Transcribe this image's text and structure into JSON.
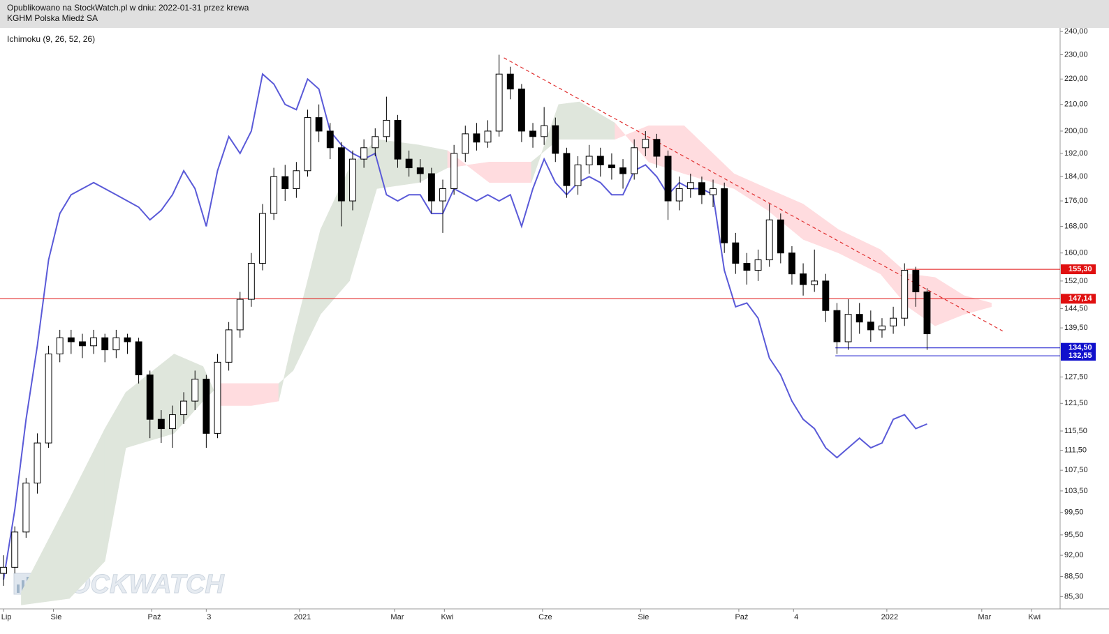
{
  "chart_data": {
    "type": "candlestick",
    "subtitle": "Opublikowano na StockWatch.pl w dniu: 2022-01-31 przez krewa",
    "title": "KGHM Polska Miedź SA",
    "indicator": "Ichimoku (9, 26, 52, 26)",
    "watermark": "STOCKWATCH",
    "log_scale": true,
    "xlim": [
      -2.2,
      656.7
    ],
    "ylim": [
      83.4,
      242.2
    ],
    "xticks": [
      {
        "value": 0,
        "label": "Lip"
      },
      {
        "value": 31,
        "label": "Sie"
      },
      {
        "value": 92,
        "label": "Paź"
      },
      {
        "value": 126,
        "label": "3"
      },
      {
        "value": 184,
        "label": "2021"
      },
      {
        "value": 243,
        "label": "Mar"
      },
      {
        "value": 274,
        "label": "Kwi"
      },
      {
        "value": 335,
        "label": "Cze"
      },
      {
        "value": 396,
        "label": "Sie"
      },
      {
        "value": 457,
        "label": "Paź"
      },
      {
        "value": 491,
        "label": "4"
      },
      {
        "value": 549,
        "label": "2022"
      },
      {
        "value": 608,
        "label": "Mar"
      },
      {
        "value": 639,
        "label": "Kwi"
      }
    ],
    "yticks": [
      {
        "value": 240,
        "label": "240,00"
      },
      {
        "value": 230,
        "label": "230,00"
      },
      {
        "value": 220,
        "label": "220,00"
      },
      {
        "value": 210,
        "label": "210,00"
      },
      {
        "value": 200,
        "label": "200,00"
      },
      {
        "value": 192,
        "label": "192,00"
      },
      {
        "value": 184,
        "label": "184,00"
      },
      {
        "value": 176,
        "label": "176,00"
      },
      {
        "value": 168,
        "label": "168,00"
      },
      {
        "value": 160,
        "label": "160,00"
      },
      {
        "value": 152,
        "label": "152,00"
      },
      {
        "value": 144.5,
        "label": "144,50"
      },
      {
        "value": 139.5,
        "label": "139,50"
      },
      {
        "value": 127.5,
        "label": "127,50"
      },
      {
        "value": 121.5,
        "label": "121,50"
      },
      {
        "value": 115.5,
        "label": "115,50"
      },
      {
        "value": 111.5,
        "label": "111,50"
      },
      {
        "value": 107.5,
        "label": "107,50"
      },
      {
        "value": 103.5,
        "label": "103,50"
      },
      {
        "value": 99.5,
        "label": "99,50"
      },
      {
        "value": 95.5,
        "label": "95,50"
      },
      {
        "value": 92,
        "label": "92,00"
      },
      {
        "value": 88.5,
        "label": "88,50"
      },
      {
        "value": 85.3,
        "label": "85,30"
      }
    ],
    "candle_up_color": "#ffffff",
    "candle_down_color": "#000000",
    "x": [
      0,
      7,
      14,
      21,
      28,
      35,
      42,
      49,
      56,
      63,
      70,
      77,
      84,
      91,
      98,
      105,
      112,
      119,
      126,
      133,
      140,
      147,
      154,
      161,
      168,
      175,
      182,
      189,
      196,
      203,
      210,
      217,
      224,
      231,
      238,
      245,
      252,
      259,
      266,
      273,
      280,
      287,
      294,
      301,
      308,
      315,
      322,
      329,
      336,
      343,
      350,
      357,
      364,
      371,
      378,
      385,
      392,
      399,
      406,
      413,
      420,
      427,
      434,
      441,
      448,
      455,
      462,
      469,
      476,
      483,
      490,
      497,
      504,
      511,
      518,
      525,
      532,
      539,
      546,
      553,
      560,
      567,
      574
    ],
    "open": [
      89,
      90,
      96,
      105,
      113,
      133,
      137,
      136,
      135,
      137,
      134,
      137,
      136,
      128,
      118,
      116,
      119,
      122,
      127,
      115,
      131,
      139,
      147,
      157,
      172,
      184,
      180,
      186,
      205,
      200,
      194,
      176,
      190,
      194,
      198,
      204,
      190,
      187,
      185,
      176,
      180,
      192,
      199,
      196,
      200,
      222,
      216,
      200,
      198,
      202,
      192,
      181,
      188,
      191,
      188,
      187,
      185,
      194,
      197,
      191,
      176,
      180,
      182,
      178,
      180,
      163,
      157,
      155,
      158,
      170,
      160,
      154,
      151,
      152,
      144,
      136,
      143,
      141,
      139,
      140,
      142,
      155,
      149
    ],
    "high": [
      92,
      97,
      106,
      115,
      135,
      139,
      139,
      138,
      139,
      138,
      139,
      138,
      137,
      129,
      120,
      121,
      124,
      129,
      128,
      133,
      141,
      149,
      160,
      175,
      187,
      188,
      189,
      208,
      210,
      203,
      196,
      193,
      197,
      201,
      213,
      206,
      193,
      190,
      187,
      183,
      195,
      202,
      203,
      204,
      230,
      225,
      218,
      203,
      209,
      205,
      194,
      191,
      195,
      194,
      192,
      190,
      197,
      200,
      199,
      193,
      184,
      185,
      184,
      183,
      182,
      166,
      160,
      161,
      175,
      172,
      162,
      157,
      161,
      154,
      146,
      147,
      146,
      144,
      142,
      145,
      157,
      156,
      150
    ],
    "low": [
      87,
      89,
      95,
      103,
      112,
      131,
      133,
      132,
      133,
      131,
      132,
      133,
      126,
      114,
      113,
      112,
      117,
      120,
      112,
      114,
      129,
      137,
      145,
      155,
      170,
      176,
      177,
      184,
      196,
      190,
      168,
      173,
      187,
      191,
      196,
      187,
      184,
      182,
      172,
      166,
      178,
      189,
      193,
      194,
      198,
      212,
      196,
      194,
      195,
      189,
      177,
      178,
      185,
      184,
      183,
      180,
      183,
      191,
      187,
      170,
      173,
      177,
      175,
      174,
      160,
      154,
      151,
      152,
      156,
      157,
      151,
      148,
      149,
      141,
      133,
      134,
      138,
      136,
      137,
      138,
      140,
      145,
      134
    ],
    "close": [
      90,
      96,
      105,
      113,
      133,
      137,
      136,
      135,
      137,
      134,
      137,
      136,
      128,
      118,
      116,
      119,
      122,
      127,
      115,
      131,
      139,
      147,
      157,
      172,
      184,
      180,
      186,
      205,
      200,
      194,
      176,
      190,
      194,
      198,
      204,
      190,
      187,
      185,
      176,
      180,
      192,
      199,
      196,
      200,
      222,
      216,
      200,
      198,
      202,
      192,
      181,
      188,
      191,
      188,
      187,
      185,
      194,
      197,
      191,
      176,
      180,
      182,
      178,
      180,
      163,
      157,
      155,
      158,
      170,
      160,
      154,
      151,
      152,
      144,
      136,
      143,
      141,
      139,
      140,
      142,
      155,
      149,
      138
    ],
    "lines": [
      {
        "color": "#5a5ad8",
        "values": [
          88,
          100,
          118,
          135,
          158,
          172,
          178,
          180,
          182,
          180,
          178,
          176,
          174,
          170,
          173,
          178,
          186,
          180,
          168,
          186,
          198,
          192,
          200,
          222,
          218,
          210,
          208,
          220,
          216,
          200,
          195,
          192,
          190,
          192,
          178,
          176,
          178,
          178,
          172,
          172,
          180,
          178,
          176,
          178,
          176,
          178,
          168,
          180,
          190,
          182,
          178,
          182,
          184,
          182,
          178,
          178,
          186,
          188,
          184,
          178,
          182,
          180,
          180,
          178,
          155,
          145,
          146,
          142,
          132,
          128,
          122,
          118,
          116,
          112,
          110,
          112,
          114,
          112,
          113,
          118,
          119,
          116,
          117
        ]
      }
    ],
    "cloud": {
      "bull_color": "#dfe6dc",
      "bear_color": "#ffdcdf",
      "x": [
        11,
        41,
        63,
        76,
        106,
        124,
        135,
        154,
        171,
        180,
        197,
        215,
        232,
        258,
        276,
        302,
        328,
        345,
        358,
        380,
        401,
        423,
        454,
        475,
        497,
        519,
        545,
        562,
        579,
        597,
        614
      ],
      "span_a": [
        86,
        102,
        116,
        124,
        133,
        130,
        121,
        121,
        122,
        137,
        167,
        187,
        197,
        195,
        193,
        182,
        182,
        210,
        211,
        203,
        189,
        185,
        180,
        173,
        164,
        160,
        154,
        145,
        140,
        143,
        145
      ],
      "span_b": [
        84,
        85,
        91,
        112,
        115,
        122,
        126,
        126,
        126,
        129,
        143,
        152,
        180,
        182,
        187,
        189,
        189,
        197,
        197,
        197,
        202,
        202,
        185,
        180,
        175,
        167,
        161,
        154,
        153,
        148,
        146
      ]
    },
    "levels": [
      {
        "value": 155.3,
        "label": "155,30",
        "color": "#e01010",
        "start": 561
      },
      {
        "value": 147.14,
        "label": "147,14",
        "color": "#e01010"
      },
      {
        "value": 134.5,
        "label": "134,50",
        "color": "#1010cc",
        "start": 517
      },
      {
        "value": 132.55,
        "label": "132,55",
        "color": "#1010cc",
        "start": 517
      }
    ],
    "trendline": {
      "color": "#e03030",
      "x": [
        311,
        621
      ],
      "y": [
        228.7,
        138.7
      ]
    }
  }
}
